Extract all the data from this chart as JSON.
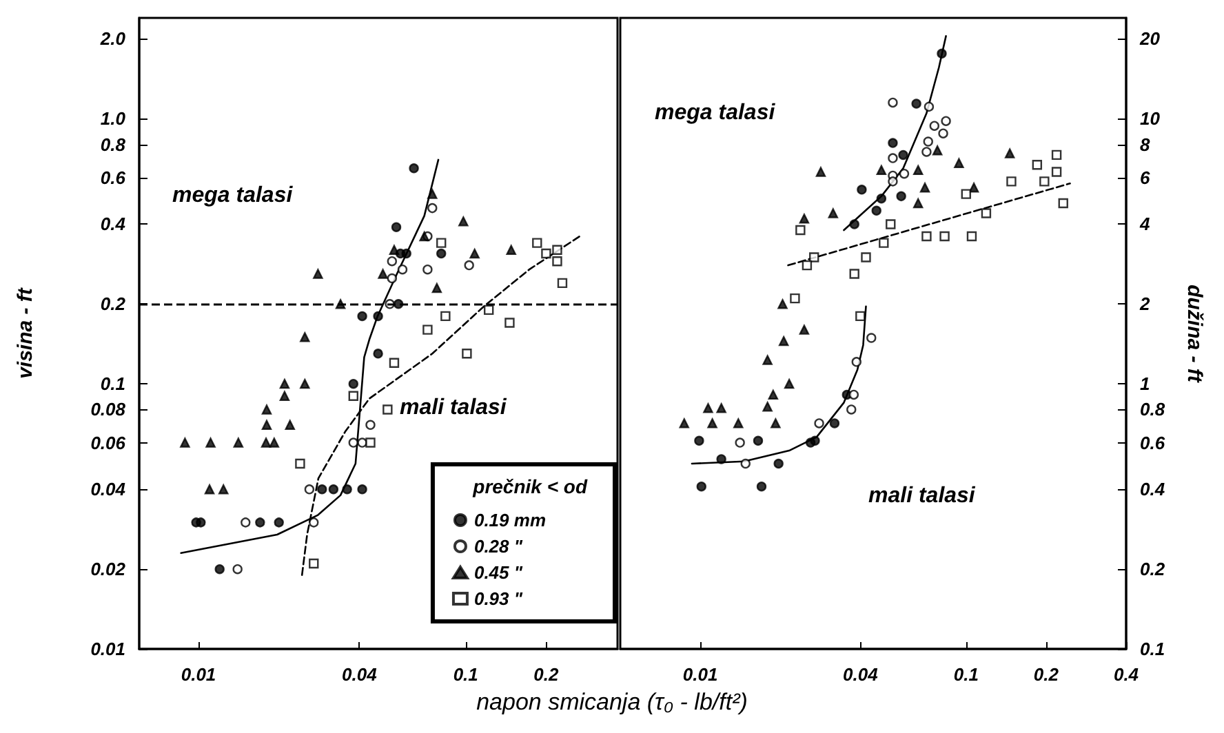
{
  "chart_data": [
    {
      "type": "scatter",
      "ylabel": "visina - ft",
      "xlabel": "napon smicanja (τ₀ - lb/ft²)",
      "legend_title": "prečnik < od",
      "legend": "bottom right",
      "log": "xy",
      "xlim": [
        0.006,
        0.37
      ],
      "xticks": [
        0.01,
        0.04,
        0.1,
        0.2
      ],
      "ylim": [
        0.01,
        2.4
      ],
      "yticks": [
        {
          "value": 2,
          "label": "2.0"
        },
        {
          "value": 1,
          "label": "1.0"
        },
        0.8,
        0.6,
        0.4,
        0.2,
        0.1,
        0.08,
        0.06,
        0.04,
        0.02,
        0.01
      ],
      "annotations": [
        "mega talasi",
        "mali talasi"
      ],
      "ref_lines": [
        {
          "axis": "y",
          "value": 0.2,
          "label": null,
          "color": "#000000",
          "line_style": "dashed"
        }
      ],
      "series": [
        {
          "name": "0.19 mm",
          "color": "#000000",
          "marker": "circle",
          "x": [
            0.064,
            0.055,
            0.057,
            0.06,
            0.081,
            0.056,
            0.041,
            0.047,
            0.047,
            0.038,
            0.029,
            0.032,
            0.036,
            0.041,
            0.0098,
            0.0102,
            0.017,
            0.02,
            0.012
          ],
          "values": [
            0.65,
            0.39,
            0.31,
            0.31,
            0.31,
            0.2,
            0.18,
            0.18,
            0.13,
            0.1,
            0.04,
            0.04,
            0.04,
            0.04,
            0.03,
            0.03,
            0.03,
            0.03,
            0.02
          ]
        },
        {
          "name": "0.28 \"",
          "color": "#ffffff",
          "marker": "circle",
          "x": [
            0.075,
            0.072,
            0.053,
            0.058,
            0.053,
            0.072,
            0.103,
            0.052,
            0.044,
            0.038,
            0.041,
            0.015,
            0.027,
            0.014,
            0.026
          ],
          "values": [
            0.46,
            0.36,
            0.29,
            0.27,
            0.25,
            0.27,
            0.28,
            0.2,
            0.07,
            0.06,
            0.06,
            0.03,
            0.03,
            0.02,
            0.04
          ]
        },
        {
          "name": "0.45 \"",
          "color": "#000000",
          "marker": "triangle",
          "x": [
            0.028,
            0.034,
            0.025,
            0.075,
            0.098,
            0.049,
            0.054,
            0.078,
            0.108,
            0.148,
            0.07,
            0.021,
            0.025,
            0.021,
            0.018,
            0.018,
            0.022,
            0.0089,
            0.0111,
            0.0141,
            0.0179,
            0.0192,
            0.011,
            0.0124
          ],
          "values": [
            0.26,
            0.2,
            0.15,
            0.52,
            0.41,
            0.26,
            0.32,
            0.23,
            0.31,
            0.32,
            0.36,
            0.1,
            0.1,
            0.09,
            0.08,
            0.07,
            0.07,
            0.06,
            0.06,
            0.06,
            0.06,
            0.06,
            0.04,
            0.04
          ]
        },
        {
          "name": "0.93 \"",
          "color": "#ffffff",
          "marker": "square",
          "x": [
            0.081,
            0.185,
            0.2,
            0.22,
            0.22,
            0.23,
            0.084,
            0.122,
            0.146,
            0.072,
            0.101,
            0.054,
            0.038,
            0.051,
            0.044,
            0.024,
            0.027
          ],
          "values": [
            0.34,
            0.34,
            0.31,
            0.32,
            0.29,
            0.24,
            0.18,
            0.19,
            0.17,
            0.16,
            0.13,
            0.12,
            0.09,
            0.08,
            0.06,
            0.05,
            0.021
          ]
        },
        {
          "type": "line",
          "color": "#000000",
          "line_style": "solid",
          "x": [
            0.0086,
            0.0197,
            0.028,
            0.034,
            0.0387,
            0.04,
            0.0417,
            0.0436,
            0.0468,
            0.0553,
            0.07,
            0.079
          ],
          "values": [
            0.023,
            0.027,
            0.032,
            0.038,
            0.05,
            0.075,
            0.126,
            0.147,
            0.18,
            0.26,
            0.43,
            0.7
          ]
        },
        {
          "type": "line",
          "color": "#000000",
          "line_style": "dashed",
          "x": [
            0.0244,
            0.0255,
            0.0281,
            0.0354,
            0.0436,
            0.075,
            0.117,
            0.173,
            0.267
          ],
          "values": [
            0.019,
            0.027,
            0.044,
            0.066,
            0.088,
            0.13,
            0.196,
            0.27,
            0.36
          ]
        }
      ]
    },
    {
      "type": "scatter",
      "ylabel": "dužina - ft",
      "log": "xy",
      "xlim": [
        0.005,
        0.4
      ],
      "xticks": [
        0.01,
        0.04,
        0.1,
        0.2,
        0.4
      ],
      "ylim": [
        0.1,
        24
      ],
      "yticks": [
        20,
        10,
        8,
        6,
        4,
        2,
        1,
        0.8,
        0.6,
        0.4,
        0.2,
        0.1
      ],
      "annotations": [
        "mega talasi",
        "mali talasi"
      ],
      "series": [
        {
          "color": "#000000",
          "marker": "circle",
          "x": [
            0.081,
            0.065,
            0.053,
            0.058,
            0.0405,
            0.048,
            0.057,
            0.046,
            0.038,
            0.0356,
            0.027,
            0.026,
            0.032,
            0.0165,
            0.0099,
            0.012,
            0.0197,
            0.0101,
            0.017
          ],
          "values": [
            17.6,
            11.4,
            8.1,
            7.3,
            5.4,
            5.0,
            5.1,
            4.5,
            4.0,
            0.91,
            0.61,
            0.6,
            0.71,
            0.61,
            0.61,
            0.52,
            0.5,
            0.41,
            0.41
          ]
        },
        {
          "color": "#ffffff",
          "marker": "circle",
          "x": [
            0.053,
            0.0725,
            0.076,
            0.084,
            0.082,
            0.072,
            0.053,
            0.053,
            0.0585,
            0.053,
            0.071,
            0.044,
            0.0387,
            0.0378,
            0.037,
            0.028,
            0.0141,
            0.0148
          ],
          "values": [
            11.5,
            11.1,
            9.4,
            9.8,
            8.8,
            8.2,
            7.1,
            6.1,
            6.2,
            5.8,
            7.5,
            1.49,
            1.21,
            0.91,
            0.8,
            0.71,
            0.6,
            0.5
          ]
        },
        {
          "color": "#000000",
          "marker": "triangle",
          "x": [
            0.0284,
            0.0246,
            0.0316,
            0.048,
            0.066,
            0.078,
            0.094,
            0.146,
            0.07,
            0.066,
            0.107,
            0.0204,
            0.0246,
            0.0206,
            0.0179,
            0.0216,
            0.0188,
            0.0179,
            0.0107,
            0.012,
            0.0111,
            0.0139,
            0.0192,
            0.0087
          ],
          "values": [
            6.3,
            4.2,
            4.4,
            6.4,
            6.4,
            7.6,
            6.8,
            7.4,
            5.5,
            4.8,
            5.5,
            2.0,
            1.6,
            1.45,
            1.23,
            1.0,
            0.91,
            0.82,
            0.81,
            0.81,
            0.71,
            0.71,
            0.71,
            0.71
          ]
        },
        {
          "color": "#ffffff",
          "marker": "square",
          "x": [
            0.219,
            0.219,
            0.185,
            0.197,
            0.148,
            0.232,
            0.1,
            0.119,
            0.071,
            0.083,
            0.105,
            0.052,
            0.049,
            0.042,
            0.038,
            0.0268,
            0.0252,
            0.0238,
            0.0227,
            0.04
          ],
          "values": [
            7.3,
            6.3,
            6.7,
            5.8,
            5.8,
            4.8,
            5.2,
            4.4,
            3.6,
            3.6,
            3.6,
            4.0,
            3.4,
            3.0,
            2.6,
            3.0,
            2.8,
            3.8,
            2.1,
            1.8
          ]
        },
        {
          "type": "line",
          "color": "#000000",
          "line_style": "solid",
          "x": [
            0.0347,
            0.048,
            0.058,
            0.071,
            0.079,
            0.084
          ],
          "values": [
            3.8,
            5.1,
            6.5,
            10.5,
            15.6,
            20.5
          ]
        },
        {
          "type": "line",
          "color": "#000000",
          "line_style": "solid",
          "x": [
            0.0093,
            0.0146,
            0.0216,
            0.0274,
            0.0347,
            0.039,
            0.041,
            0.042
          ],
          "values": [
            0.5,
            0.51,
            0.56,
            0.63,
            0.85,
            1.13,
            1.4,
            1.96
          ]
        },
        {
          "type": "line",
          "color": "#000000",
          "line_style": "dashed",
          "x": [
            0.0214,
            0.246
          ],
          "values": [
            2.8,
            5.7
          ]
        }
      ]
    }
  ]
}
